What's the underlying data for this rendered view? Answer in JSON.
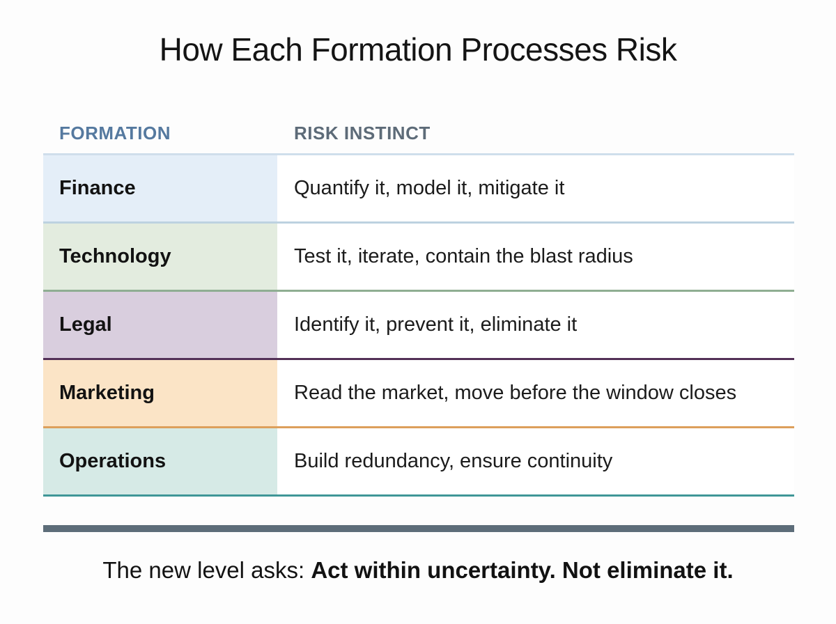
{
  "title": "How Each Formation Processes Risk",
  "table": {
    "columns": [
      {
        "label": "FORMATION",
        "color": "#55799f"
      },
      {
        "label": "RISK INSTINCT",
        "color": "#5d6b78"
      }
    ],
    "header_underline_color": "#cfdeeb",
    "rows": [
      {
        "formation": "Finance",
        "instinct": "Quantify it, model it, mitigate it",
        "bg": "#e4eef8",
        "border": "#bdd2e0"
      },
      {
        "formation": "Technology",
        "instinct": "Test it, iterate, contain the blast radius",
        "bg": "#e3ecdf",
        "border": "#8fae92"
      },
      {
        "formation": "Legal",
        "instinct": "Identify it, prevent it, eliminate it",
        "bg": "#d9cede",
        "border": "#533057"
      },
      {
        "formation": "Marketing",
        "instinct": "Read the market, move before the window closes",
        "bg": "#fbe4c6",
        "border": "#dd9f5b"
      },
      {
        "formation": "Operations",
        "instinct": "Build redundancy, ensure continuity",
        "bg": "#d6eae6",
        "border": "#3f9697"
      }
    ]
  },
  "footer": {
    "bar_color": "#5d6d79",
    "prefix": "The new level asks: ",
    "emphasis": "Act within uncertainty. Not eliminate it."
  }
}
